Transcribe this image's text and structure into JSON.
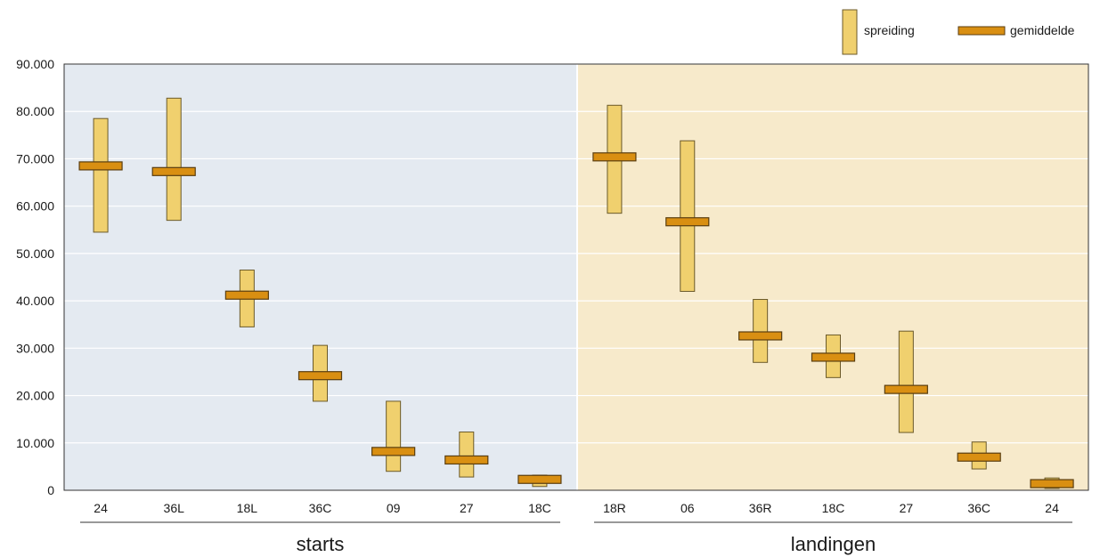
{
  "chart_data": {
    "type": "box",
    "ylim": [
      0,
      90000
    ],
    "yticks": [
      "0",
      "10.000",
      "20.000",
      "30.000",
      "40.000",
      "50.000",
      "60.000",
      "70.000",
      "80.000",
      "90.000"
    ],
    "ytick_values": [
      0,
      10000,
      20000,
      30000,
      40000,
      50000,
      60000,
      70000,
      80000,
      90000
    ],
    "grid": true,
    "legend": {
      "position": "top-right",
      "items": [
        {
          "key": "spreiding",
          "label": "spreiding"
        },
        {
          "key": "gemiddelde",
          "label": "gemiddelde"
        }
      ]
    },
    "colors": {
      "spreiding_fill": "#f0d06e",
      "spreiding_stroke": "#6b5a2a",
      "gemiddelde_fill": "#d98f12",
      "gemiddelde_stroke": "#5a3e10",
      "starts_bg": "#e4eaf1",
      "landingen_bg": "#f7eacb",
      "grid": "#ffffff",
      "axis": "#333333"
    },
    "groups": [
      {
        "label": "starts",
        "background": "starts_bg",
        "categories": [
          "24",
          "36L",
          "18L",
          "36C",
          "09",
          "27",
          "18C"
        ],
        "min": [
          54500,
          57000,
          34500,
          18800,
          4000,
          2800,
          800
        ],
        "max": [
          78500,
          82800,
          46500,
          30600,
          18800,
          12300,
          3200
        ],
        "mean": [
          68500,
          67300,
          41200,
          24200,
          8200,
          6400,
          2300
        ]
      },
      {
        "label": "landingen",
        "background": "landingen_bg",
        "categories": [
          "18R",
          "06",
          "36R",
          "18C",
          "27",
          "36C",
          "24"
        ],
        "min": [
          58500,
          42000,
          27000,
          23800,
          12200,
          4500,
          400
        ],
        "max": [
          81300,
          73800,
          40300,
          32800,
          33600,
          10200,
          2600
        ],
        "mean": [
          70400,
          56700,
          32600,
          28100,
          21300,
          7000,
          1400
        ]
      }
    ]
  }
}
